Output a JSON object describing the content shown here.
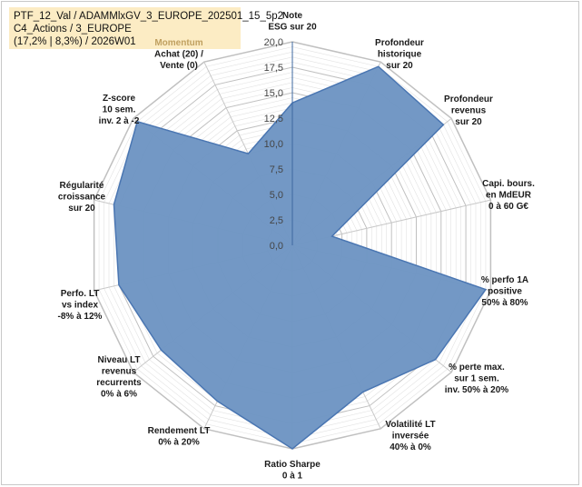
{
  "title": {
    "line1": "PTF_12_Val / ADAMMlxGV_3_EUROPE_202501_15_5p2",
    "line2": "C4_Actions / 3_EUROPE",
    "line3": "(17,2% | 8,3%) / 2026W01"
  },
  "colors": {
    "fill": "#7096c4",
    "stroke": "#4a76b2",
    "grid": "#c0c0c0",
    "title_bg": "#fcecc4",
    "highlight_label": "#c0a060"
  },
  "chart_data": {
    "type": "radar",
    "rmax": 20,
    "ticks": [
      "0,0",
      "2,5",
      "5,0",
      "7,5",
      "10,0",
      "12,5",
      "15,0",
      "17,5",
      "20,0"
    ],
    "axes": [
      {
        "label": [
          "Note",
          "ESG sur 20"
        ],
        "value": 14.0
      },
      {
        "label": [
          "Profondeur",
          "historique",
          "sur 20"
        ],
        "value": 19.5
      },
      {
        "label": [
          "Profondeur",
          "revenus",
          "sur 20"
        ],
        "value": 19.0
      },
      {
        "label": [
          "Capi. bours.",
          "en MdEUR",
          "0 à 60 G€"
        ],
        "value": 4.0
      },
      {
        "label": [
          "% perfo 1A",
          "positive",
          "50% à 80%"
        ],
        "value": 19.5
      },
      {
        "label": [
          "% perte max.",
          "sur 1 sem.",
          "inv. 50% à 20%"
        ],
        "value": 18.0
      },
      {
        "label": [
          "Volatilité LT",
          "inversée",
          "40% à 0%"
        ],
        "value": 16.0
      },
      {
        "label": [
          "Ratio Sharpe",
          "0 à 1"
        ],
        "value": 20.0
      },
      {
        "label": [
          "Rendement LT",
          "0% à 20%"
        ],
        "value": 17.0
      },
      {
        "label": [
          "Niveau LT",
          "revenus",
          "recurrents",
          "0% à 6%"
        ],
        "value": 16.5
      },
      {
        "label": [
          "Perfo. LT",
          "vs index",
          "-8% à 12%"
        ],
        "value": 17.5
      },
      {
        "label": [
          "Régularité",
          "croissance",
          "sur 20"
        ],
        "value": 18.0
      },
      {
        "label": [
          "Z-score",
          "10 sem.",
          "inv. 2 à -2"
        ],
        "value": 19.5
      },
      {
        "label": [
          "Momentum",
          "Achat (20) /",
          "Vente (0)"
        ],
        "value": 10.0,
        "highlight_first_line": true
      }
    ]
  }
}
